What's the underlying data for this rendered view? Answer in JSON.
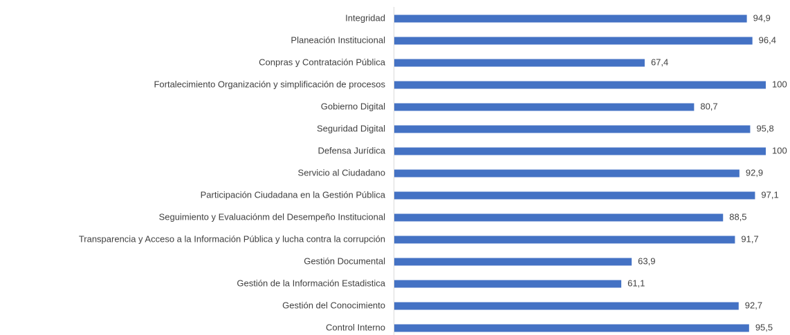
{
  "chart_data": {
    "type": "bar",
    "orientation": "horizontal",
    "categories": [
      "Integridad",
      "Planeación Institucional",
      "Conpras y Contratación Pública",
      "Fortalecimiento Organización y simplificación de procesos",
      "Gobierno Digital",
      "Seguridad Digital",
      "Defensa Jurídica",
      "Servicio al Ciudadano",
      "Participación Ciudadana en la Gestión Pública",
      "Seguimiento y Evaluaciónm del Desempeño Institucional",
      "Transparencia y Acceso a la Información Pública y lucha contra la corrupción",
      "Gestión Documental",
      "Gestión de la Información Estadistica",
      "Gestión del Conocimiento",
      "Control Interno"
    ],
    "values": [
      94.9,
      96.4,
      67.4,
      100,
      80.7,
      95.8,
      100,
      92.9,
      97.1,
      88.5,
      91.7,
      63.9,
      61.1,
      92.7,
      95.5
    ],
    "value_labels": [
      "94,9",
      "96,4",
      "67,4",
      "100",
      "80,7",
      "95,8",
      "100",
      "92,9",
      "97,1",
      "88,5",
      "91,7",
      "63,9",
      "61,1",
      "92,7",
      "95,5"
    ],
    "color": "#4472c4",
    "xlim": [
      0,
      100
    ]
  }
}
